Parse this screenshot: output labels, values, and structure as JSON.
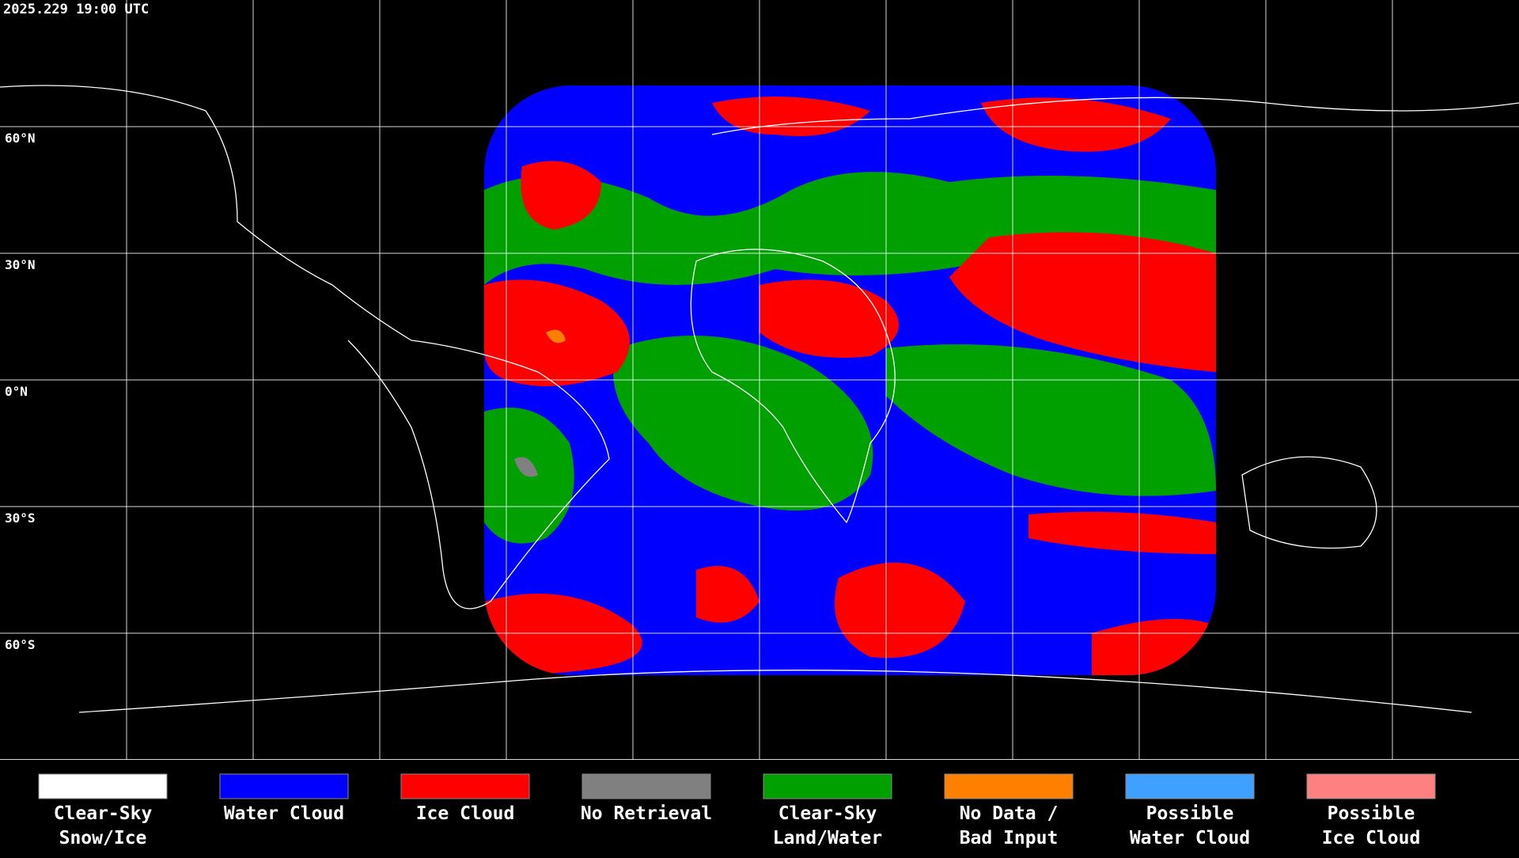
{
  "header": {
    "timestamp": "2025.229 19:00 UTC"
  },
  "map": {
    "latitude_labels": [
      "60°N",
      "30°N",
      "0°N",
      "30°S",
      "60°S"
    ]
  },
  "legend": {
    "items": [
      {
        "lines": [
          "Clear-Sky",
          "Snow/Ice"
        ],
        "color": "#ffffff"
      },
      {
        "lines": [
          "Water Cloud"
        ],
        "color": "#0000ff"
      },
      {
        "lines": [
          "Ice Cloud"
        ],
        "color": "#ff0000"
      },
      {
        "lines": [
          "No Retrieval"
        ],
        "color": "#808080"
      },
      {
        "lines": [
          "Clear-Sky",
          "Land/Water"
        ],
        "color": "#00a000"
      },
      {
        "lines": [
          "No Data /",
          "Bad Input"
        ],
        "color": "#ff8000"
      },
      {
        "lines": [
          "Possible",
          "Water Cloud"
        ],
        "color": "#40a0ff"
      },
      {
        "lines": [
          "Possible",
          "Ice Cloud"
        ],
        "color": "#ff8080"
      }
    ]
  }
}
